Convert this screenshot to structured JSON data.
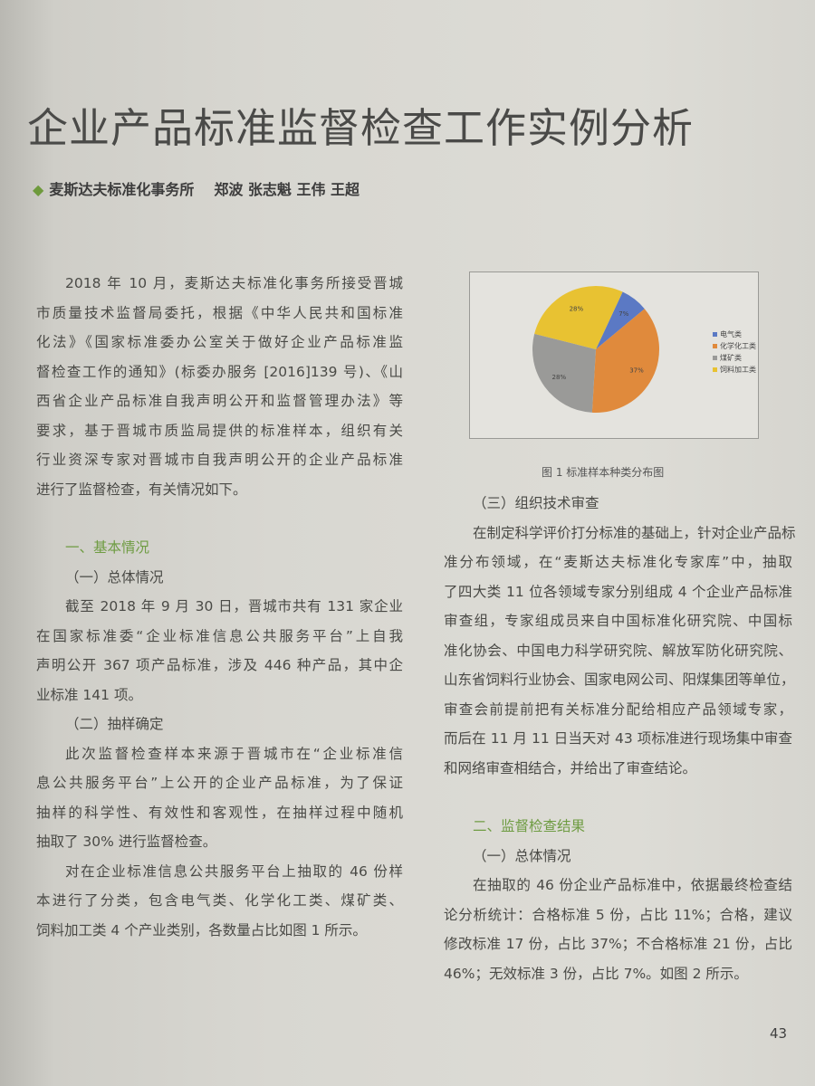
{
  "title": "企业产品标准监督检查工作实例分析",
  "byline": {
    "org": "麦斯达夫标准化事务所",
    "authors": "郑波 张志魁 王伟 王超"
  },
  "left_column": [
    {
      "type": "p",
      "lines": [
        "2018 年 10 月，麦斯达夫标准化事务所接受晋城",
        "市质量技术监督局委托，根据《中华人民共和国标准",
        "化法》《国家标准委办公室关于做好企业产品标准监",
        "督检查工作的通知》(标委办服务 [2016]139 号)、《山",
        "西省企业产品标准自我声明公开和监督管理办法》等",
        "要求，基于晋城市质监局提供的标准样本，组织有关",
        "行业资深专家对晋城市自我声明公开的企业产品标准",
        "进行了监督检查，有关情况如下。"
      ]
    },
    {
      "type": "h1",
      "text": "一、基本情况"
    },
    {
      "type": "h2",
      "text": "（一）总体情况"
    },
    {
      "type": "p",
      "lines": [
        "截至 2018 年 9 月 30 日，晋城市共有 131 家企业",
        "在国家标准委“企业标准信息公共服务平台”上自我",
        "声明公开 367 项产品标准，涉及 446 种产品，其中企",
        "业标准 141 项。"
      ]
    },
    {
      "type": "h2",
      "text": "（二）抽样确定"
    },
    {
      "type": "p",
      "lines": [
        "此次监督检查样本来源于晋城市在“企业标准信",
        "息公共服务平台”上公开的企业产品标准，为了保证",
        "抽样的科学性、有效性和客观性，在抽样过程中随机",
        "抽取了 30% 进行监督检查。"
      ]
    },
    {
      "type": "p",
      "lines": [
        "对在企业标准信息公共服务平台上抽取的 46 份样",
        "本进行了分类，包含电气类、化学化工类、煤矿类、",
        "饲料加工类 4 个产业类别，各数量占比如图 1 所示。"
      ]
    }
  ],
  "right_column": [
    {
      "type": "h2",
      "text": "（三）组织技术审查"
    },
    {
      "type": "p",
      "lines": [
        "在制定科学评价打分标准的基础上，针对企业产品标",
        "准分布领域，在“麦斯达夫标准化专家库”中，抽取",
        "了四大类 11 位各领域专家分别组成 4 个企业产品标准",
        "审查组，专家组成员来自中国标准化研究院、中国标",
        "准化协会、中国电力科学研究院、解放军防化研究院、",
        "山东省饲料行业协会、国家电网公司、阳煤集团等单位，",
        "审查会前提前把有关标准分配给相应产品领域专家，",
        "而后在 11 月 11 日当天对 43 项标准进行现场集中审查",
        "和网络审查相结合，并给出了审查结论。"
      ]
    },
    {
      "type": "h1",
      "text": "二、监督检查结果"
    },
    {
      "type": "h2",
      "text": "（一）总体情况"
    },
    {
      "type": "p",
      "lines": [
        "在抽取的 46 份企业产品标准中，依据最终检查结",
        "论分析统计：合格标准 5 份，占比 11%；合格，建议",
        "修改标准 17 份，占比 37%；不合格标准 21 份，占比",
        "46%；无效标准 3 份，占比 7%。如图 2 所示。"
      ]
    }
  ],
  "figure_caption": "图 1 标准样本种类分布图",
  "chart_data": {
    "type": "pie",
    "categories": [
      "电气类",
      "化学化工类",
      "煤矿类",
      "饲料加工类"
    ],
    "values": [
      7,
      37,
      28,
      28
    ],
    "labels": [
      "7%",
      "37%",
      "28%",
      "28%"
    ],
    "colors": [
      "#5b79c4",
      "#e08a3c",
      "#9a9a98",
      "#e8c232"
    ],
    "legend": "right"
  },
  "page_number": "43",
  "colors": {
    "heading_green": "#6f9c43"
  }
}
